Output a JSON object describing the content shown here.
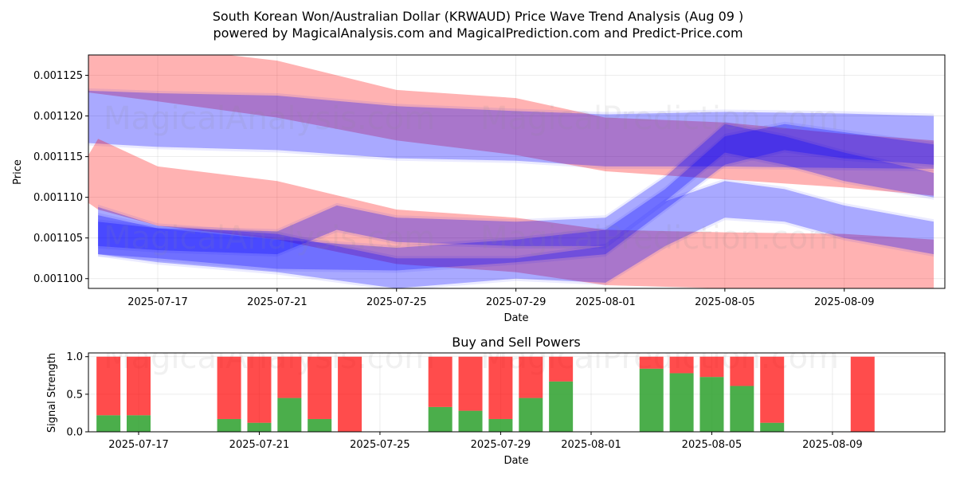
{
  "title_line1": "South Korean Won/Australian Dollar (KRWAUD) Price Wave Trend Analysis (Aug 09 )",
  "title_line2": "powered by MagicalAnalysis.com and MagicalPrediction.com and Predict-Price.com",
  "watermarks": [
    "MagicalAnalysis.com",
    "MagicalPrediction.com"
  ],
  "colors": {
    "blue": "#0000ff",
    "red": "#ff0000",
    "purple": "#8a2be2",
    "buy": "#2ca02c",
    "sell": "#ff0000"
  },
  "chart_data": [
    {
      "type": "area",
      "xlabel": "Date",
      "ylabel": "Price",
      "ylim": [
        0.0010988,
        0.0011275
      ],
      "x_ticks": [
        "2025-07-17",
        "2025-07-21",
        "2025-07-25",
        "2025-07-29",
        "2025-08-01",
        "2025-08-05",
        "2025-08-09"
      ],
      "y_ticks": [
        "0.001100",
        "0.001105",
        "0.001110",
        "0.001115",
        "0.001120",
        "0.001125"
      ],
      "grid": true,
      "bands": [
        {
          "color": "red",
          "x": [
            "2025-07-14",
            "2025-07-17",
            "2025-07-21",
            "2025-07-25",
            "2025-07-29",
            "2025-08-01",
            "2025-08-05",
            "2025-08-09",
            "2025-08-12"
          ],
          "upper": [
            0.001129,
            0.0011285,
            0.0011268,
            0.0011232,
            0.0011222,
            0.0011198,
            0.0011192,
            0.0011178,
            0.001117
          ],
          "lower": [
            0.0011232,
            0.0011218,
            0.0011198,
            0.001117,
            0.0011152,
            0.0011132,
            0.0011122,
            0.0011112,
            0.0011102
          ]
        },
        {
          "color": "blue",
          "x": [
            "2025-07-14",
            "2025-07-17",
            "2025-07-21",
            "2025-07-25",
            "2025-07-29",
            "2025-08-01",
            "2025-08-05",
            "2025-08-09",
            "2025-08-12"
          ],
          "upper": [
            0.0011232,
            0.0011228,
            0.0011225,
            0.0011212,
            0.0011206,
            0.0011202,
            0.0011205,
            0.0011203,
            0.00112
          ],
          "lower": [
            0.0011168,
            0.0011162,
            0.0011158,
            0.0011148,
            0.0011145,
            0.0011138,
            0.0011138,
            0.0011136,
            0.0011135
          ]
        },
        {
          "color": "red",
          "x": [
            "2025-07-14",
            "2025-07-15",
            "2025-07-17",
            "2025-07-21",
            "2025-07-25",
            "2025-07-29",
            "2025-08-01",
            "2025-08-05",
            "2025-08-09",
            "2025-08-12"
          ],
          "upper": [
            0.001111,
            0.0011172,
            0.0011138,
            0.001112,
            0.0011085,
            0.0011075,
            0.001106,
            0.0011057,
            0.0011055,
            0.0011048
          ],
          "lower": [
            0.001111,
            0.0011085,
            0.0011065,
            0.0011048,
            0.0011018,
            0.0011008,
            0.0010992,
            0.0010988,
            0.0010987,
            0.0010983
          ]
        },
        {
          "color": "blue",
          "x": [
            "2025-07-15",
            "2025-07-17",
            "2025-07-21",
            "2025-07-25",
            "2025-07-29",
            "2025-08-01",
            "2025-08-03",
            "2025-08-05",
            "2025-08-07",
            "2025-08-09",
            "2025-08-12"
          ],
          "upper": [
            0.0011088,
            0.0011065,
            0.0011055,
            0.0011025,
            0.0011025,
            0.001104,
            0.0011095,
            0.001112,
            0.001111,
            0.001109,
            0.001107
          ],
          "lower": [
            0.001103,
            0.001102,
            0.0011008,
            0.0010988,
            0.0011,
            0.0010995,
            0.001104,
            0.0011075,
            0.001107,
            0.001105,
            0.001103
          ]
        },
        {
          "color": "blue",
          "x": [
            "2025-07-15",
            "2025-07-17",
            "2025-07-21",
            "2025-07-23",
            "2025-07-25",
            "2025-07-29",
            "2025-08-01",
            "2025-08-03",
            "2025-08-05",
            "2025-08-07",
            "2025-08-09",
            "2025-08-12"
          ],
          "upper": [
            0.0011078,
            0.0011062,
            0.0011058,
            0.001109,
            0.0011075,
            0.001107,
            0.0011075,
            0.0011125,
            0.001119,
            0.0011175,
            0.0011155,
            0.001113
          ],
          "lower": [
            0.001104,
            0.0011035,
            0.001103,
            0.001106,
            0.0011045,
            0.001104,
            0.001104,
            0.0011095,
            0.0011155,
            0.001114,
            0.001112,
            0.00111
          ]
        },
        {
          "color": "blue",
          "x": [
            "2025-07-15",
            "2025-07-17",
            "2025-07-21",
            "2025-07-25",
            "2025-07-29",
            "2025-08-01",
            "2025-08-03",
            "2025-08-05",
            "2025-08-07",
            "2025-08-09",
            "2025-08-12"
          ],
          "upper": [
            0.001107,
            0.0011062,
            0.0011048,
            0.0011038,
            0.0011048,
            0.001106,
            0.001111,
            0.0011175,
            0.001119,
            0.001118,
            0.0011165
          ],
          "lower": [
            0.001103,
            0.0011025,
            0.0011012,
            0.001101,
            0.001102,
            0.001103,
            0.0011085,
            0.001114,
            0.0011158,
            0.0011148,
            0.001114
          ]
        }
      ]
    },
    {
      "type": "bar",
      "title": "Buy and Sell Powers",
      "xlabel": "Date",
      "ylabel": "Signal Strength",
      "ylim": [
        0,
        1.05
      ],
      "x_ticks": [
        "2025-07-17",
        "2025-07-21",
        "2025-07-25",
        "2025-07-29",
        "2025-08-01",
        "2025-08-05",
        "2025-08-09"
      ],
      "y_ticks": [
        "0.0",
        "0.5",
        "1.0"
      ],
      "grid": true,
      "categories": [
        "2025-07-16",
        "2025-07-17",
        "2025-07-20",
        "2025-07-21",
        "2025-07-22",
        "2025-07-23",
        "2025-07-24",
        "2025-07-27",
        "2025-07-28",
        "2025-07-29",
        "2025-07-30",
        "2025-07-31",
        "2025-08-03",
        "2025-08-04",
        "2025-08-05",
        "2025-08-06",
        "2025-08-07",
        "2025-08-10"
      ],
      "series": [
        {
          "name": "Buy",
          "values": [
            0.22,
            0.22,
            0.17,
            0.12,
            0.45,
            0.17,
            0.0,
            0.33,
            0.28,
            0.17,
            0.45,
            0.67,
            0.84,
            0.78,
            0.73,
            0.61,
            0.12,
            0.0
          ]
        },
        {
          "name": "Sell",
          "values": [
            0.78,
            0.78,
            0.83,
            0.88,
            0.55,
            0.83,
            1.0,
            0.67,
            0.72,
            0.83,
            0.55,
            0.33,
            0.16,
            0.22,
            0.27,
            0.39,
            0.88,
            1.0
          ]
        }
      ]
    }
  ]
}
